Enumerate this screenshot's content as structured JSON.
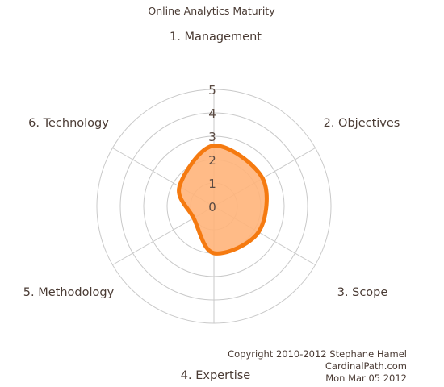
{
  "chart_data": {
    "type": "radar",
    "title": "Online Analytics Maturity",
    "axes": [
      "1. Management",
      "2. Objectives",
      "3. Scope",
      "4. Expertise",
      "5. Methodology",
      "6. Technology"
    ],
    "values": [
      2.6,
      2.4,
      2.2,
      2.0,
      1.0,
      1.7
    ],
    "rlim": [
      0,
      5
    ],
    "ticks": [
      "0",
      "1",
      "2",
      "3",
      "4",
      "5"
    ],
    "fill_color": "#ffb47a",
    "line_color": "#f57a10",
    "grid_color": "#c9c9c9"
  },
  "footer": {
    "copyright": "Copyright 2010-2012 Stephane Hamel",
    "site": "CardinalPath.com",
    "date": "Mon Mar 05 2012"
  }
}
